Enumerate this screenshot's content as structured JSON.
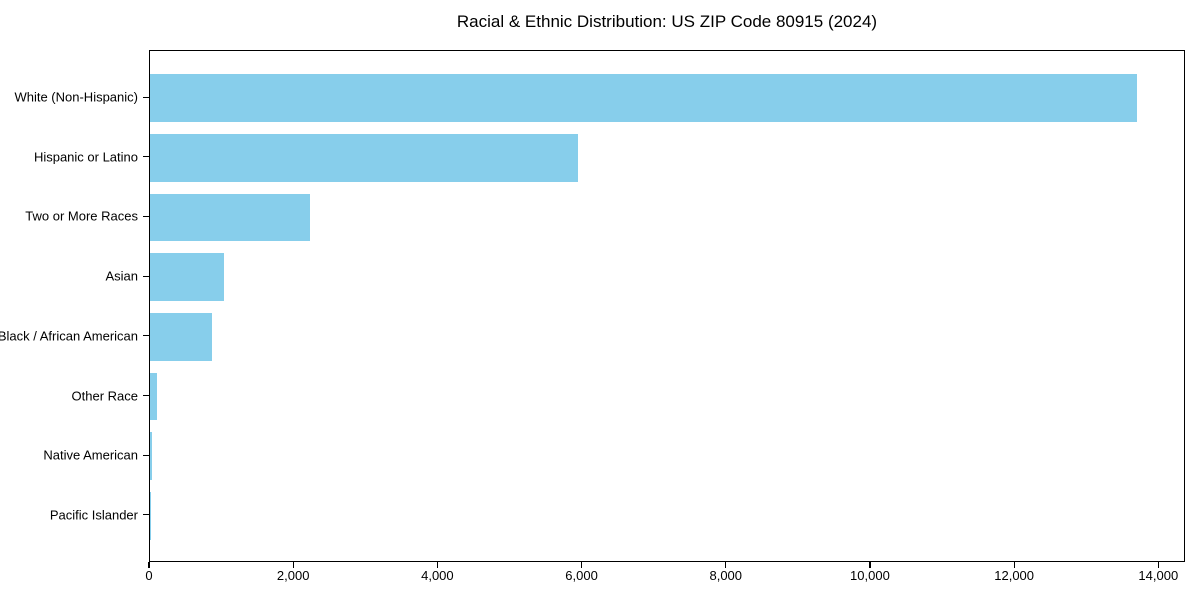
{
  "chart_data": {
    "type": "bar",
    "orientation": "horizontal",
    "title": "Racial & Ethnic Distribution: US ZIP Code 80915 (2024)",
    "categories": [
      "White (Non-Hispanic)",
      "Hispanic or Latino",
      "Two or More Races",
      "Asian",
      "Black / African American",
      "Other Race",
      "Native American",
      "Pacific Islander"
    ],
    "values": [
      13690,
      5930,
      2220,
      1030,
      860,
      100,
      30,
      15
    ],
    "xlabel": "",
    "ylabel": "",
    "xlim": [
      0,
      14370
    ],
    "x_ticks": [
      0,
      2000,
      4000,
      6000,
      8000,
      10000,
      12000,
      14000
    ],
    "x_tick_labels": [
      "0",
      "2,000",
      "4,000",
      "6,000",
      "8,000",
      "10,000",
      "12,000",
      "14,000"
    ],
    "grid": false,
    "legend": null,
    "bar_color": "#87CEEB"
  },
  "colors": {
    "bar": "#87CEEB",
    "text": "#000000",
    "axis": "#000000",
    "background": "#ffffff"
  }
}
